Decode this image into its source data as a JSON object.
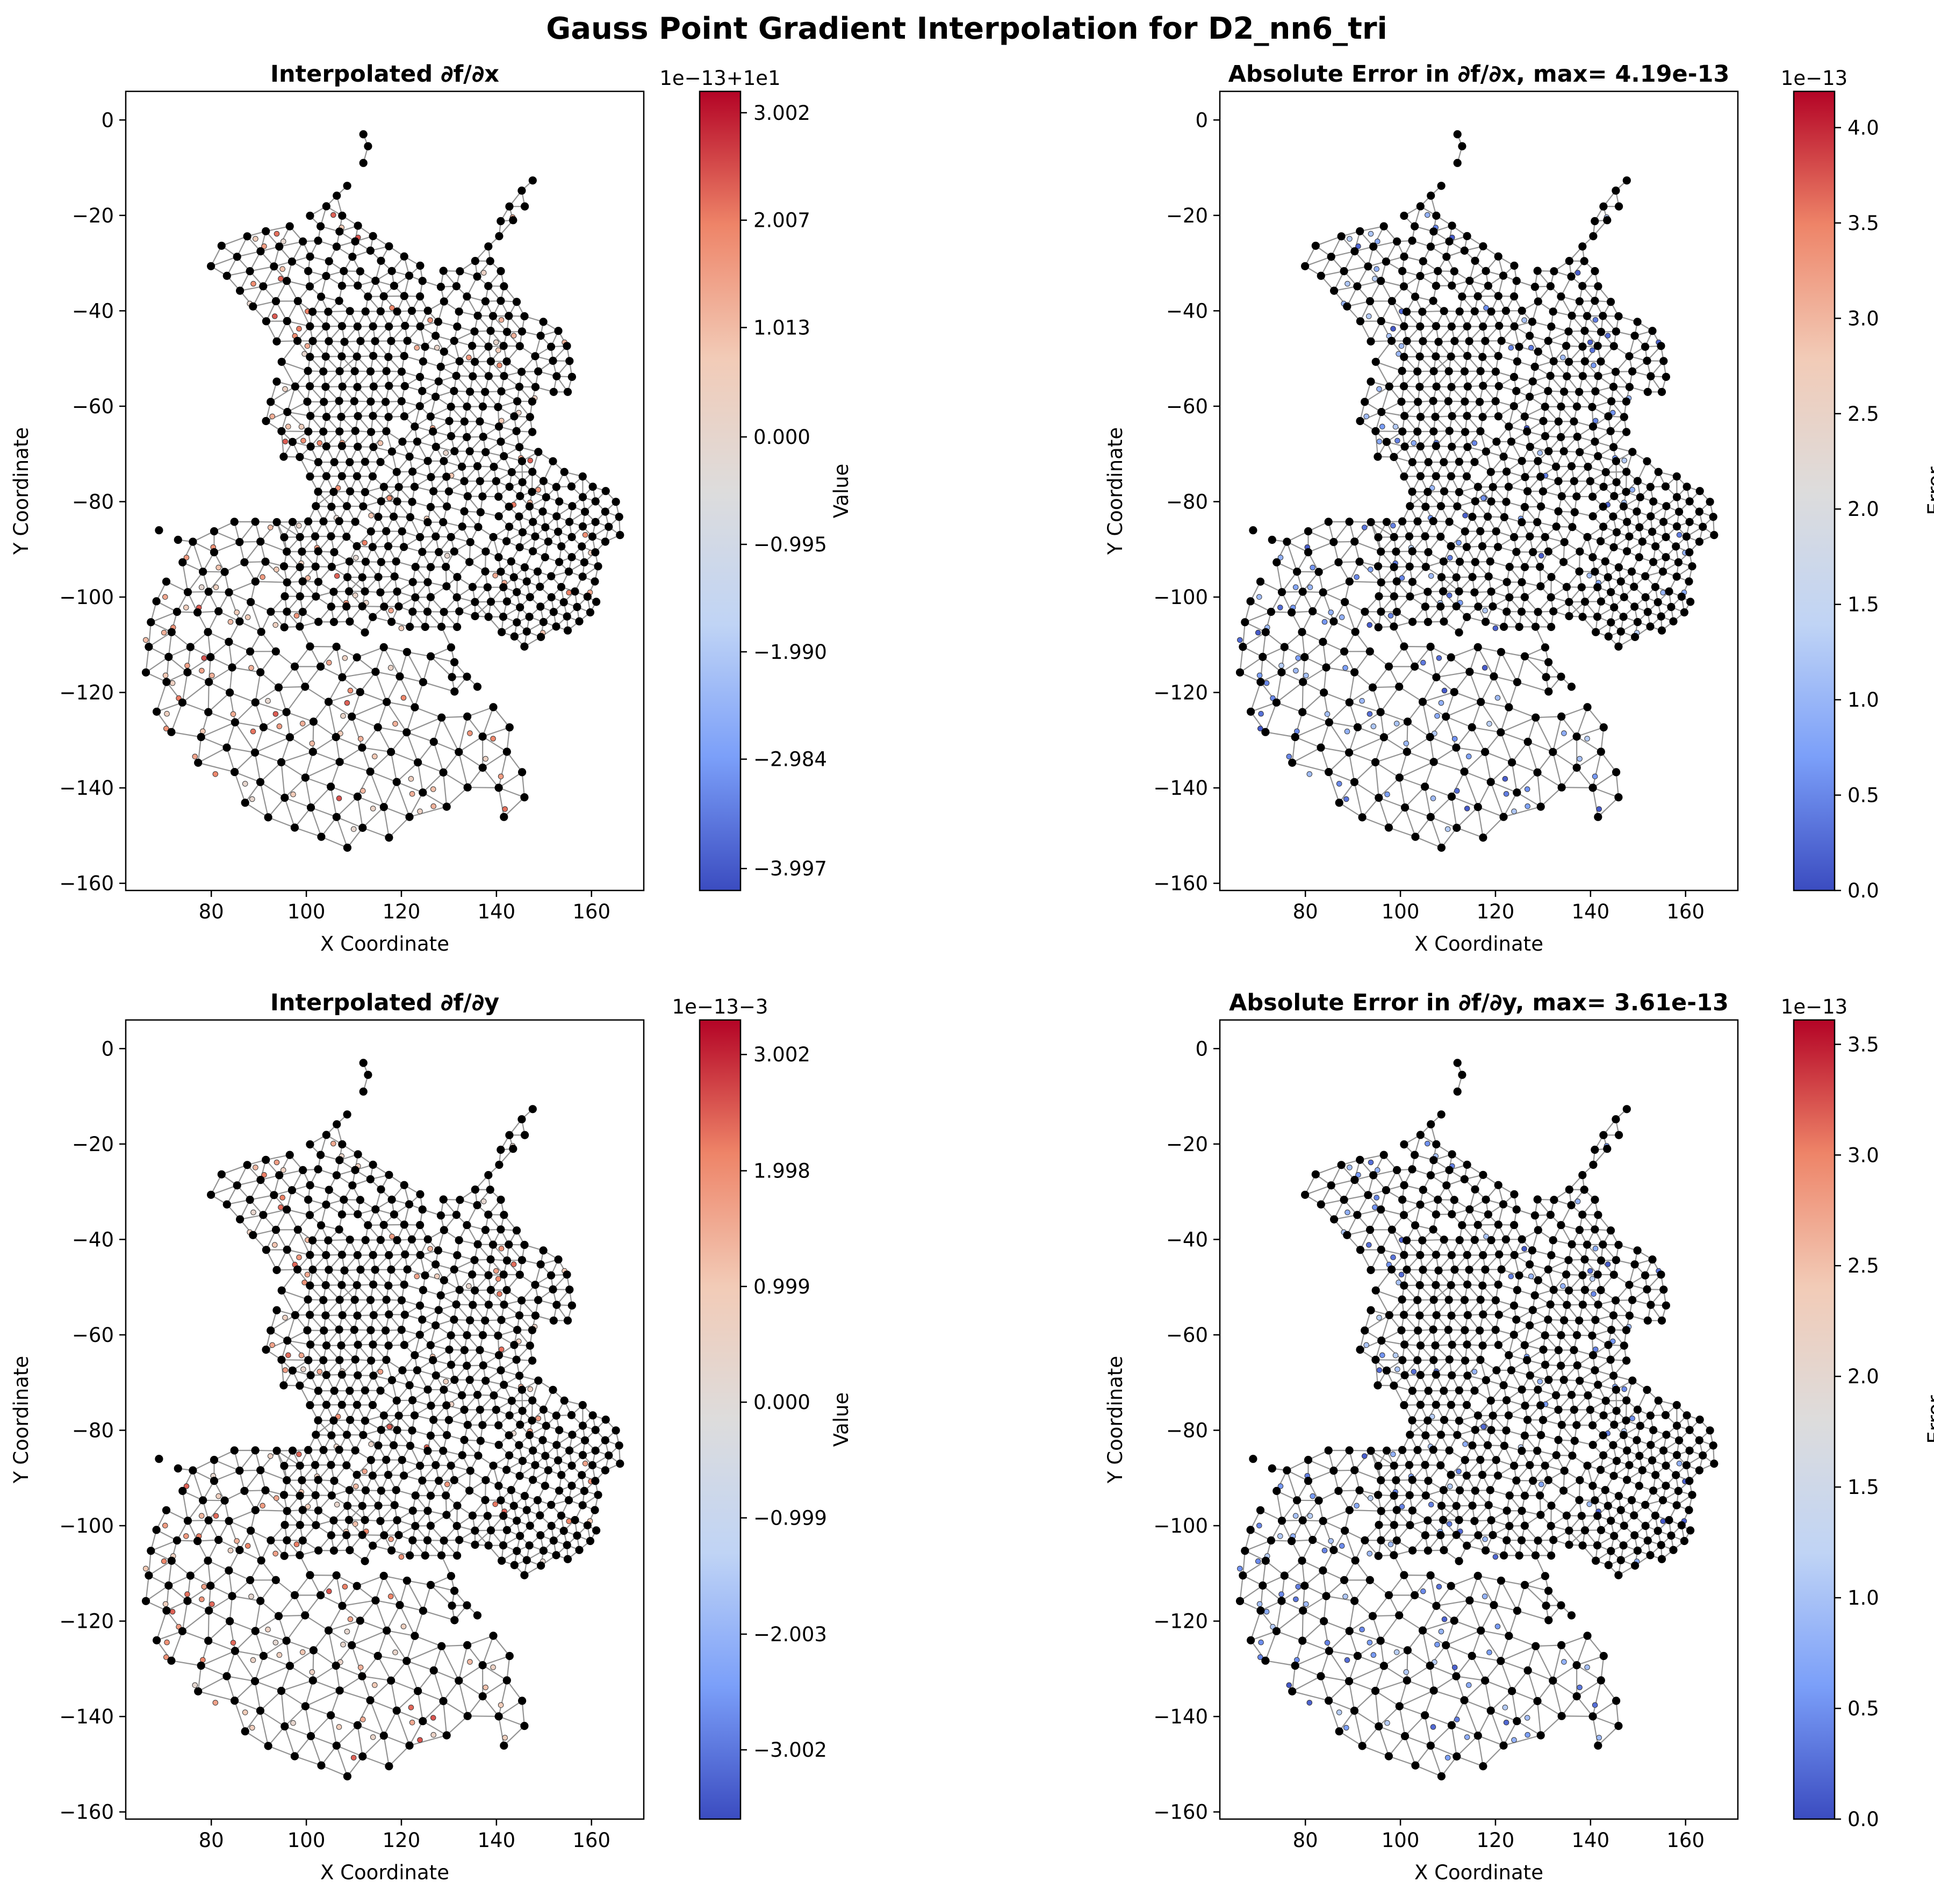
{
  "figure": {
    "title": "Gauss Point Gradient Interpolation for D2_nn6_tri"
  },
  "colormap": {
    "name": "coolwarm",
    "stops": [
      "#3b4cc0",
      "#7b9ff9",
      "#c0d4f5",
      "#dddcdc",
      "#f2cbb7",
      "#ee8468",
      "#b40426"
    ]
  },
  "node_color": "#000000",
  "mesh_edge_color": "#808080",
  "chart_data": [
    {
      "type": "scatter",
      "title": "Interpolated ∂f/∂x",
      "xlabel": "X Coordinate",
      "ylabel": "Y Coordinate",
      "xlim": [
        62,
        171
      ],
      "ylim": [
        -161.5,
        6
      ],
      "xticks": [
        80,
        100,
        120,
        140,
        160
      ],
      "yticks": [
        0,
        -20,
        -40,
        -60,
        -80,
        -100,
        -120,
        -140,
        -160
      ],
      "series": [
        {
          "values": []
        },
        {
          "values": []
        }
      ],
      "colorbar": {
        "label": "Value",
        "offset_text": "1e−13+1e1",
        "range": [
          -4.2,
          3.2
        ],
        "ticks": [
          3.002,
          2.007,
          1.013,
          0.0,
          -0.995,
          -1.99,
          -2.984,
          -3.997
        ],
        "tick_labels": [
          "3.002",
          "2.007",
          "1.013",
          "0.000",
          "−0.995",
          "−1.990",
          "−2.984",
          "−3.997"
        ]
      },
      "gauss_color_bias": "warm"
    },
    {
      "type": "scatter",
      "title": "Absolute Error in ∂f/∂x, max= 4.19e-13",
      "xlabel": "X Coordinate",
      "ylabel": "Y Coordinate",
      "xlim": [
        62,
        171
      ],
      "ylim": [
        -161.5,
        6
      ],
      "xticks": [
        80,
        100,
        120,
        140,
        160
      ],
      "yticks": [
        0,
        -20,
        -40,
        -60,
        -80,
        -100,
        -120,
        -140,
        -160
      ],
      "series": [
        {
          "values": []
        },
        {
          "values": []
        }
      ],
      "colorbar": {
        "label": "Error",
        "offset_text": "1e−13",
        "range": [
          0,
          4.19
        ],
        "ticks": [
          4.0,
          3.5,
          3.0,
          2.5,
          2.0,
          1.5,
          1.0,
          0.5,
          0.0
        ],
        "tick_labels": [
          "4.0",
          "3.5",
          "3.0",
          "2.5",
          "2.0",
          "1.5",
          "1.0",
          "0.5",
          "0.0"
        ]
      },
      "gauss_color_bias": "cool"
    },
    {
      "type": "scatter",
      "title": "Interpolated ∂f/∂y",
      "xlabel": "X Coordinate",
      "ylabel": "Y Coordinate",
      "xlim": [
        62,
        171
      ],
      "ylim": [
        -161.5,
        6
      ],
      "xticks": [
        80,
        100,
        120,
        140,
        160
      ],
      "yticks": [
        0,
        -20,
        -40,
        -60,
        -80,
        -100,
        -120,
        -140,
        -160
      ],
      "series": [
        {
          "values": []
        },
        {
          "values": []
        }
      ],
      "colorbar": {
        "label": "Value",
        "offset_text": "1e−13−3",
        "range": [
          -3.6,
          3.3
        ],
        "ticks": [
          3.002,
          1.998,
          0.999,
          0.0,
          -0.999,
          -2.003,
          -3.002
        ],
        "tick_labels": [
          "3.002",
          "1.998",
          "0.999",
          "0.000",
          "−0.999",
          "−2.003",
          "−3.002"
        ]
      },
      "gauss_color_bias": "warm"
    },
    {
      "type": "scatter",
      "title": "Absolute Error in ∂f/∂y, max= 3.61e-13",
      "xlabel": "X Coordinate",
      "ylabel": "Y Coordinate",
      "xlim": [
        62,
        171
      ],
      "ylim": [
        -161.5,
        6
      ],
      "xticks": [
        80,
        100,
        120,
        140,
        160
      ],
      "yticks": [
        0,
        -20,
        -40,
        -60,
        -80,
        -100,
        -120,
        -140,
        -160
      ],
      "series": [
        {
          "values": []
        },
        {
          "values": []
        }
      ],
      "colorbar": {
        "label": "Error",
        "offset_text": "1e−13",
        "range": [
          0,
          3.61
        ],
        "ticks": [
          3.5,
          3.0,
          2.5,
          2.0,
          1.5,
          1.0,
          0.5,
          0.0
        ],
        "tick_labels": [
          "3.5",
          "3.0",
          "2.5",
          "2.0",
          "1.5",
          "1.0",
          "0.5",
          "0.0"
        ]
      },
      "gauss_color_bias": "cool"
    }
  ]
}
